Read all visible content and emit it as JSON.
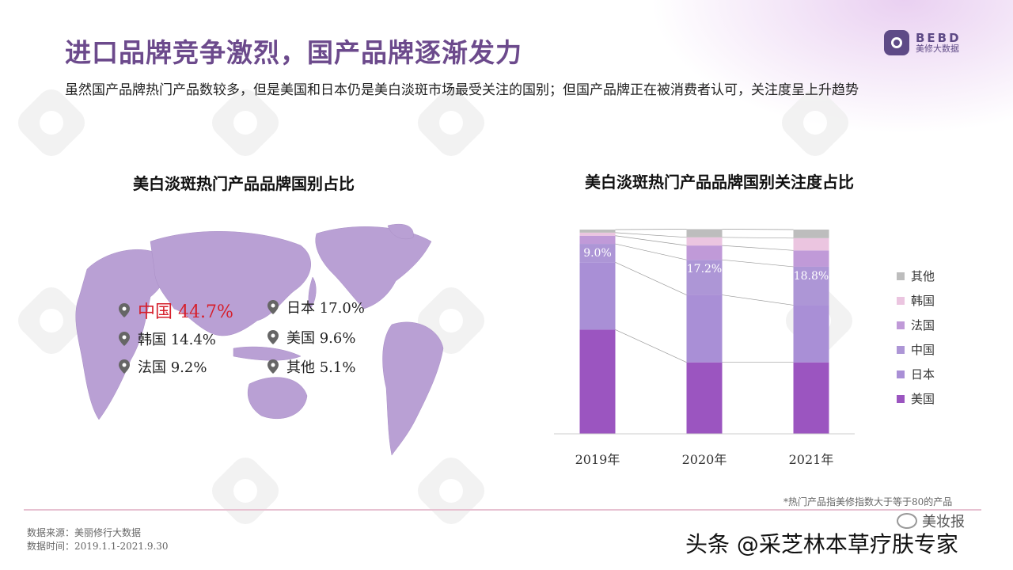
{
  "header": {
    "title": "进口品牌竞争激烈，国产品牌逐渐发力",
    "subtitle": "虽然国产品牌热门产品数较多，但是美国和日本仍是美白淡斑市场最受关注的国别；但国产品牌正在被消费者认可，关注度呈上升趋势",
    "brand_en": "BEBD",
    "brand_cn": "美修大数据"
  },
  "map_panel": {
    "title": "美白淡斑热门产品品牌国别占比",
    "labels": [
      {
        "text": "中国 44.7%"
      },
      {
        "text": "日本 17.0%"
      },
      {
        "text": "韩国 14.4%"
      },
      {
        "text": "美国 9.6%"
      },
      {
        "text": "法国 9.2%"
      },
      {
        "text": "其他 5.1%"
      }
    ]
  },
  "chart_panel": {
    "title": "美白淡斑热门产品品牌国别关注度占比",
    "legend": [
      "其他",
      "韩国",
      "法国",
      "中国",
      "日本",
      "美国"
    ],
    "note": "*热门产品指美修指数大于等于80的产品"
  },
  "chart_data": {
    "type": "bar",
    "stacked": true,
    "normalized": true,
    "title": "美白淡斑热门产品品牌国别关注度占比",
    "categories": [
      "2019年",
      "2020年",
      "2021年"
    ],
    "series": [
      {
        "name": "美国",
        "values": [
          51,
          35,
          35
        ],
        "color": "#9b55c0"
      },
      {
        "name": "日本",
        "values": [
          33,
          33,
          28
        ],
        "color": "#a98fd6"
      },
      {
        "name": "中国",
        "values": [
          9.0,
          17.2,
          18.8
        ],
        "color": "#ad96d6"
      },
      {
        "name": "法国",
        "values": [
          4,
          7,
          8
        ],
        "color": "#c09ad8"
      },
      {
        "name": "韩国",
        "values": [
          1.5,
          4,
          6
        ],
        "color": "#ebc5e0"
      },
      {
        "name": "其他",
        "values": [
          1.5,
          4,
          4.2
        ],
        "color": "#bdbdbd"
      }
    ],
    "data_labels": [
      "9.0%",
      "17.2%",
      "18.8%"
    ],
    "ylim": [
      0,
      100
    ]
  },
  "map_data": {
    "type": "table",
    "title": "美白淡斑热门产品品牌国别占比",
    "categories": [
      "中国",
      "日本",
      "韩国",
      "美国",
      "法国",
      "其他"
    ],
    "values": [
      44.7,
      17.0,
      14.4,
      9.6,
      9.2,
      5.1
    ]
  },
  "footer": {
    "source_line1": "数据来源：美丽修行大数据",
    "source_line2": "数据时间：2019.1.1-2021.9.30",
    "weibo_label": "美妆报",
    "brand": "头条 @采芝林本草疗肤专家"
  },
  "colors": {
    "title": "#6c4a8c",
    "map": "#b9a0d4",
    "highlight": "#d61f2b"
  }
}
